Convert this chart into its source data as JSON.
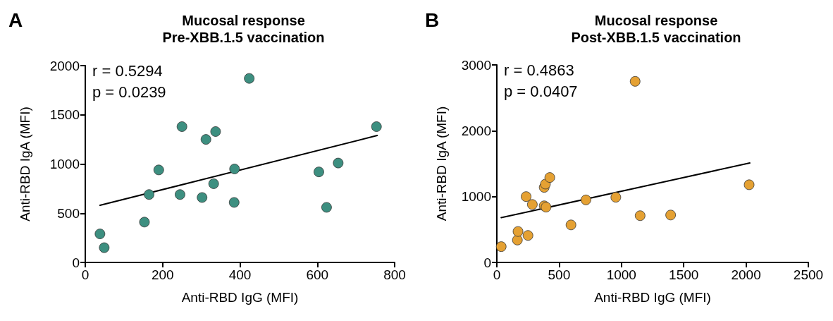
{
  "chart_data": [
    {
      "type": "scatter",
      "title": "Mucosal response\nPre-XBB.1.5 vaccination",
      "xlabel": "Anti-RBD IgG (MFI)",
      "ylabel": "Anti-RBD IgA (MFI)",
      "annotations": [
        "A",
        "r = 0.5294",
        "p = 0.0239"
      ],
      "xlim": [
        0,
        800
      ],
      "xticks": [
        0,
        200,
        400,
        600,
        800
      ],
      "ylim": [
        0,
        2000
      ],
      "yticks": [
        0,
        500,
        1000,
        1500,
        2000
      ],
      "grid": false,
      "marker": "circle",
      "series": [
        {
          "color": "#3d8f80",
          "x": [
            38,
            49,
            153,
            165,
            190,
            250,
            245,
            302,
            312,
            332,
            337,
            385,
            386,
            424,
            604,
            624,
            654,
            753
          ],
          "values": [
            290,
            150,
            410,
            690,
            940,
            1380,
            690,
            660,
            1250,
            800,
            1330,
            610,
            950,
            1870,
            920,
            560,
            1010,
            1380
          ]
        },
        {
          "type": "line",
          "color": "#000000",
          "marker": "none",
          "line_style": "solid",
          "x": [
            38,
            755
          ],
          "values": [
            580,
            1290
          ]
        }
      ]
    },
    {
      "type": "scatter",
      "title": "Mucosal response\nPost-XBB.1.5 vaccination",
      "xlabel": "Anti-RBD IgG (MFI)",
      "ylabel": "Anti-RBD IgA (MFI)",
      "annotations": [
        "B",
        "r = 0.4863",
        "p = 0.0407"
      ],
      "xlim": [
        0,
        2500
      ],
      "xticks": [
        0,
        500,
        1000,
        1500,
        2000,
        2500
      ],
      "ylim": [
        0,
        3000
      ],
      "yticks": [
        0,
        1000,
        2000,
        3000
      ],
      "grid": false,
      "marker": "circle",
      "series": [
        {
          "color": "#e5a133",
          "x": [
            35,
            165,
            170,
            250,
            235,
            285,
            380,
            395,
            380,
            390,
            425,
            595,
            715,
            955,
            1110,
            1150,
            1395,
            2025
          ],
          "values": [
            240,
            340,
            470,
            410,
            1000,
            880,
            860,
            840,
            1140,
            1190,
            1290,
            570,
            950,
            990,
            2750,
            710,
            720,
            1180
          ]
        },
        {
          "type": "line",
          "color": "#000000",
          "marker": "none",
          "line_style": "solid",
          "x": [
            35,
            2030
          ],
          "values": [
            680,
            1510
          ]
        }
      ]
    }
  ]
}
